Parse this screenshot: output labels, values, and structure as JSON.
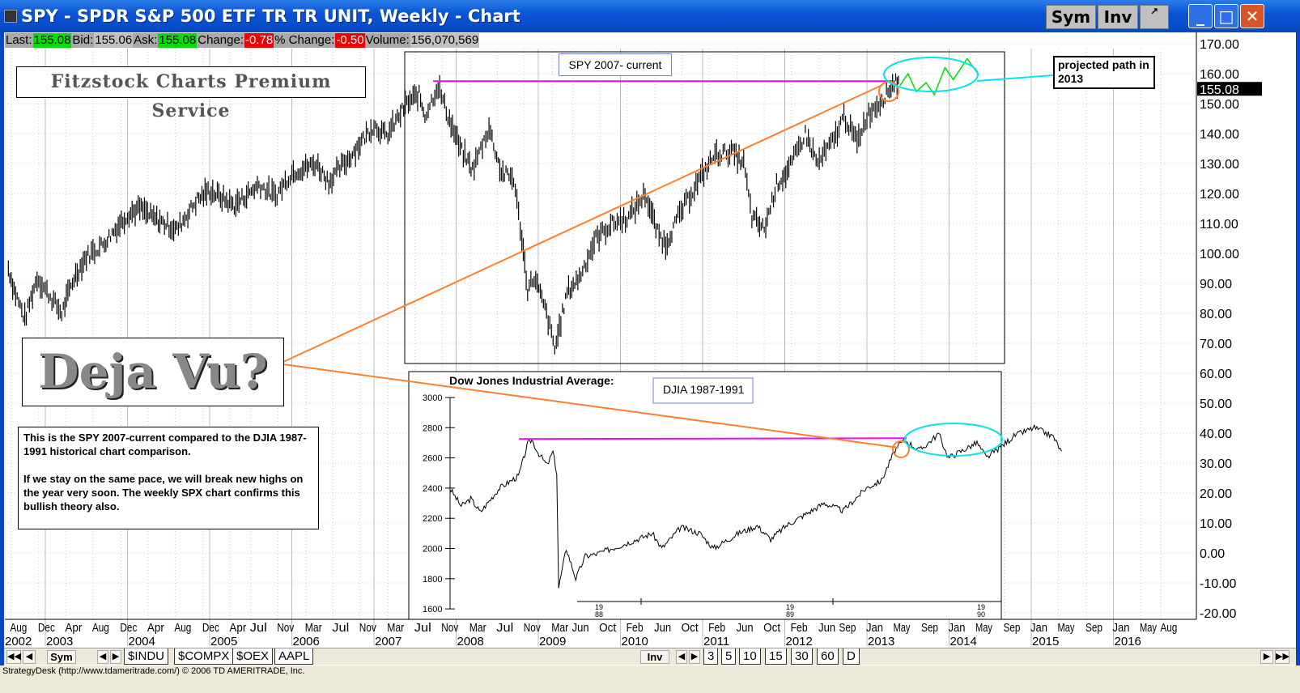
{
  "window": {
    "title": "SPY - SPDR S&P 500 ETF TR TR UNIT, Weekly - Chart",
    "sym_button": "Sym",
    "inv_button": "Inv",
    "popout_icon": "popout-icon",
    "minimize": "_",
    "maximize": "□",
    "close": "✕"
  },
  "quote": {
    "last_label": "Last:",
    "last": "155.08",
    "bid_label": "Bid:",
    "bid": "155.06",
    "ask_label": "Ask:",
    "ask": "155.08",
    "change_label": "Change:",
    "change": "-0.78",
    "pct_label": "% Change:",
    "pct": "-0.50",
    "volume_label": "Volume:",
    "volume": "156,070,569"
  },
  "colors": {
    "up": "#00e000",
    "down": "#f00000",
    "trend": "#ff7f2a",
    "resistance": "#ff00ff",
    "projection": "#00e5ee",
    "projected_path": "#00dd00"
  },
  "annotations": {
    "logo": "Fitzstock Charts Premium Service",
    "deja_vu": "Deja Vu?",
    "spy_label": "SPY 2007- current",
    "djia_label": "DJIA 1987-1991",
    "projected": "projected path in 2013",
    "comment_1": "This is the SPY 2007-current compared to the DJIA 1987-1991 historical chart comparison.",
    "comment_2": "If we stay on the same pace, we will break new highs on the year very soon.  The weekly SPX chart confirms this bullish theory also."
  },
  "chart_data": [
    {
      "type": "line",
      "title": "SPY Weekly",
      "ylim": [
        -20,
        170
      ],
      "yticks": [
        "170.00",
        "160.00",
        "150.00",
        "140.00",
        "130.00",
        "120.00",
        "110.00",
        "100.00",
        "90.00",
        "80.00",
        "70.00",
        "60.00",
        "50.00",
        "40.00",
        "30.00",
        "20.00",
        "10.00",
        "0.00",
        "-10.00",
        "-20.00"
      ],
      "last_price_label": "155.08",
      "x_month_labels": [
        [
          "Aug",
          2002.58
        ],
        [
          "Dec",
          2002.92
        ],
        [
          "Apr",
          2003.25
        ],
        [
          "Aug",
          2003.58
        ],
        [
          "Dec",
          2003.92
        ],
        [
          "Apr",
          2004.25
        ],
        [
          "Aug",
          2004.58
        ],
        [
          "Dec",
          2004.92
        ],
        [
          "Apr",
          2005.25
        ],
        [
          "Jul",
          2005.5
        ],
        [
          "Nov",
          2005.83
        ],
        [
          "Mar",
          2006.17
        ],
        [
          "Jul",
          2006.5
        ],
        [
          "Nov",
          2006.83
        ],
        [
          "Mar",
          2007.17
        ],
        [
          "Jul",
          2007.5
        ],
        [
          "Nov",
          2007.83
        ],
        [
          "Mar",
          2008.17
        ],
        [
          "Jul",
          2008.5
        ],
        [
          "Nov",
          2008.83
        ],
        [
          "Mar",
          2009.17
        ],
        [
          "Jun",
          2009.42
        ],
        [
          "Oct",
          2009.75
        ],
        [
          "Feb",
          2010.08
        ],
        [
          "Jun",
          2010.42
        ],
        [
          "Oct",
          2010.75
        ],
        [
          "Feb",
          2011.08
        ],
        [
          "Jun",
          2011.42
        ],
        [
          "Oct",
          2011.75
        ],
        [
          "Feb",
          2012.08
        ],
        [
          "Jun",
          2012.42
        ],
        [
          "Sep",
          2012.67
        ],
        [
          "Jan",
          2013.0
        ],
        [
          "May",
          2013.33
        ],
        [
          "Sep",
          2013.67
        ],
        [
          "Jan",
          2014.0
        ],
        [
          "May",
          2014.33
        ],
        [
          "Sep",
          2014.67
        ],
        [
          "Jan",
          2015.0
        ],
        [
          "May",
          2015.33
        ],
        [
          "Sep",
          2015.67
        ],
        [
          "Jan",
          2016.0
        ],
        [
          "May",
          2016.33
        ],
        [
          "Aug",
          2016.58
        ]
      ],
      "x_year_labels": [
        "2002",
        "2003",
        "2004",
        "2005",
        "2006",
        "2007",
        "2008",
        "2009",
        "2010",
        "2011",
        "2012",
        "2013",
        "2014",
        "2015",
        "2016"
      ],
      "series": [
        {
          "name": "SPY",
          "points": [
            [
              2002.55,
              95
            ],
            [
              2002.62,
              88
            ],
            [
              2002.75,
              78
            ],
            [
              2002.9,
              92
            ],
            [
              2003.0,
              88
            ],
            [
              2003.2,
              80
            ],
            [
              2003.35,
              92
            ],
            [
              2003.5,
              99
            ],
            [
              2003.7,
              103
            ],
            [
              2004.0,
              113
            ],
            [
              2004.15,
              115
            ],
            [
              2004.3,
              112
            ],
            [
              2004.6,
              108
            ],
            [
              2004.85,
              118
            ],
            [
              2005.0,
              121
            ],
            [
              2005.3,
              116
            ],
            [
              2005.6,
              123
            ],
            [
              2005.8,
              119
            ],
            [
              2006.0,
              127
            ],
            [
              2006.3,
              130
            ],
            [
              2006.45,
              124
            ],
            [
              2006.7,
              132
            ],
            [
              2007.0,
              143
            ],
            [
              2007.15,
              139
            ],
            [
              2007.4,
              150
            ],
            [
              2007.55,
              153
            ],
            [
              2007.62,
              146
            ],
            [
              2007.78,
              156
            ],
            [
              2007.9,
              146
            ],
            [
              2008.05,
              135
            ],
            [
              2008.2,
              128
            ],
            [
              2008.4,
              142
            ],
            [
              2008.55,
              127
            ],
            [
              2008.7,
              125
            ],
            [
              2008.8,
              105
            ],
            [
              2008.87,
              88
            ],
            [
              2008.95,
              92
            ],
            [
              2009.1,
              80
            ],
            [
              2009.2,
              68
            ],
            [
              2009.35,
              87
            ],
            [
              2009.5,
              92
            ],
            [
              2009.7,
              105
            ],
            [
              2009.9,
              110
            ],
            [
              2010.1,
              112
            ],
            [
              2010.3,
              120
            ],
            [
              2010.45,
              107
            ],
            [
              2010.55,
              103
            ],
            [
              2010.7,
              112
            ],
            [
              2010.9,
              122
            ],
            [
              2011.15,
              133
            ],
            [
              2011.35,
              134
            ],
            [
              2011.5,
              130
            ],
            [
              2011.6,
              112
            ],
            [
              2011.75,
              108
            ],
            [
              2011.9,
              123
            ],
            [
              2012.05,
              128
            ],
            [
              2012.25,
              140
            ],
            [
              2012.4,
              130
            ],
            [
              2012.6,
              138
            ],
            [
              2012.72,
              146
            ],
            [
              2012.88,
              137
            ],
            [
              2013.0,
              146
            ],
            [
              2013.2,
              152
            ],
            [
              2013.35,
              158
            ],
            [
              2013.4,
              155
            ]
          ]
        },
        {
          "name": "Projected path",
          "points": [
            [
              2013.4,
              156
            ],
            [
              2013.5,
              160
            ],
            [
              2013.6,
              154
            ],
            [
              2013.72,
              157
            ],
            [
              2013.82,
              153
            ],
            [
              2013.95,
              162
            ],
            [
              2014.05,
              158
            ],
            [
              2014.22,
              165
            ],
            [
              2014.35,
              160
            ]
          ]
        }
      ],
      "resistance": 157.5
    },
    {
      "type": "line",
      "title": "Dow Jones Industrial Average:",
      "ylim": [
        1600,
        3000
      ],
      "yticks": [
        "3000",
        "2800",
        "2600",
        "2400",
        "2200",
        "2000",
        "1800",
        "1600"
      ],
      "x_labels": [
        [
          "19",
          "88",
          1988.0
        ],
        [
          "19",
          "89",
          1989.0
        ],
        [
          "19",
          "90",
          1990.0
        ]
      ],
      "series": [
        {
          "name": "DJIA",
          "points": [
            [
              1987.24,
              2400
            ],
            [
              1987.3,
              2280
            ],
            [
              1987.35,
              2330
            ],
            [
              1987.4,
              2240
            ],
            [
              1987.5,
              2400
            ],
            [
              1987.6,
              2480
            ],
            [
              1987.65,
              2700
            ],
            [
              1987.67,
              2720
            ],
            [
              1987.7,
              2640
            ],
            [
              1987.75,
              2550
            ],
            [
              1987.78,
              2640
            ],
            [
              1987.8,
              2500
            ],
            [
              1987.81,
              1740
            ],
            [
              1987.85,
              2000
            ],
            [
              1987.9,
              1800
            ],
            [
              1987.95,
              1950
            ],
            [
              1988.0,
              1960
            ],
            [
              1988.2,
              2050
            ],
            [
              1988.3,
              2100
            ],
            [
              1988.35,
              2000
            ],
            [
              1988.45,
              2140
            ],
            [
              1988.55,
              2100
            ],
            [
              1988.62,
              2000
            ],
            [
              1988.75,
              2100
            ],
            [
              1988.85,
              2150
            ],
            [
              1988.92,
              2060
            ],
            [
              1989.0,
              2150
            ],
            [
              1989.2,
              2300
            ],
            [
              1989.3,
              2250
            ],
            [
              1989.42,
              2400
            ],
            [
              1989.5,
              2450
            ],
            [
              1989.57,
              2650
            ],
            [
              1989.62,
              2720
            ],
            [
              1989.7,
              2650
            ],
            [
              1989.8,
              2760
            ],
            [
              1989.85,
              2600
            ],
            [
              1990.0,
              2700
            ],
            [
              1990.05,
              2600
            ],
            [
              1990.2,
              2750
            ],
            [
              1990.3,
              2800
            ],
            [
              1990.4,
              2740
            ],
            [
              1990.45,
              2620
            ]
          ]
        }
      ],
      "resistance": 2725
    }
  ],
  "tabs": {
    "sym": "Sym",
    "inv": "Inv",
    "symbols": [
      "$INDU",
      "$COMPX",
      "$OEX",
      "AAPL"
    ],
    "intervals": [
      "3",
      "5",
      "10",
      "15",
      "30",
      "60",
      "D"
    ]
  },
  "status": "StrategyDesk (http://www.tdameritrade.com/) © 2006 TD AMERITRADE, Inc."
}
